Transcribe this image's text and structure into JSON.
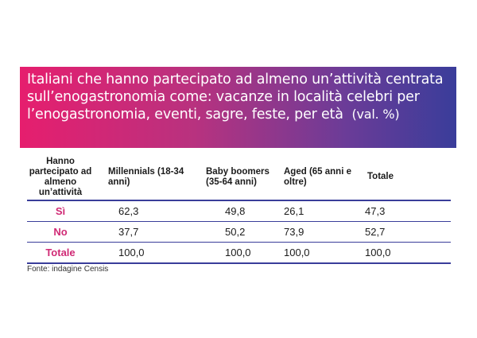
{
  "title": "Italiani che hanno partecipato ad almeno un’attività centrata sull’enogastronomia come: vacanze in località celebri per l’enogastronomia, eventi, sagre, feste, per età",
  "unit": "(val. %)",
  "table": {
    "row_header": "Hanno partecipato ad almeno un’attività",
    "columns": [
      "Millennials (18-34 anni)",
      "Baby boomers (35-64 anni)",
      "Aged (65 anni e oltre)",
      "Totale"
    ],
    "rows": [
      {
        "label": "Sì",
        "values": [
          "62,3",
          "49,8",
          "26,1",
          "47,3"
        ]
      },
      {
        "label": "No",
        "values": [
          "37,7",
          "50,2",
          "73,9",
          "52,7"
        ]
      },
      {
        "label": "Totale",
        "values": [
          "100,0",
          "100,0",
          "100,0",
          "100,0"
        ]
      }
    ]
  },
  "source": "Fonte: indagine Censis",
  "colors": {
    "accent_pink": "#e61e6e",
    "accent_blue": "#3a3d9a",
    "label_pink": "#d02a75"
  }
}
